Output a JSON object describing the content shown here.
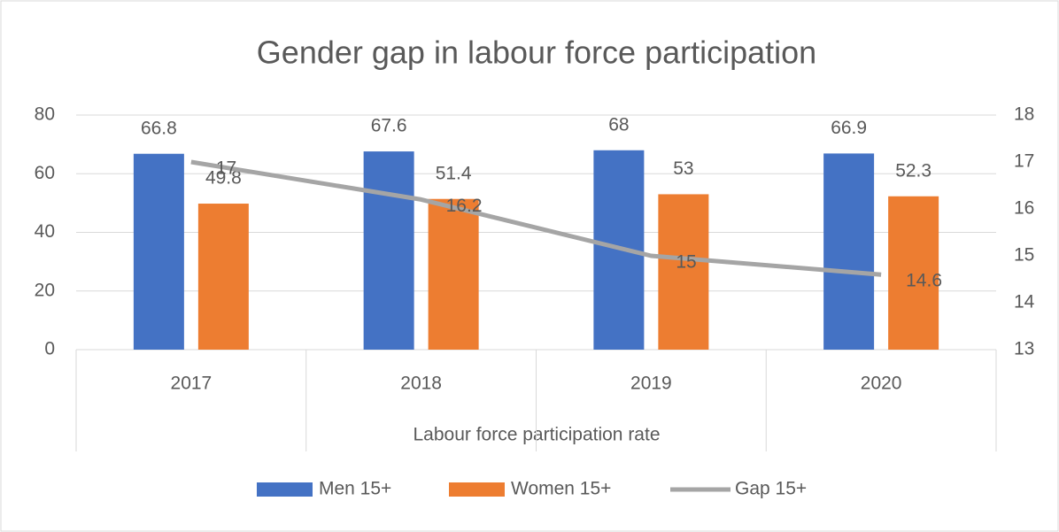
{
  "chart_data": {
    "type": "bar",
    "title": "Gender gap in labour force participation",
    "x_label": "Labour force participation rate",
    "categories": [
      "2017",
      "2018",
      "2019",
      "2020"
    ],
    "series": [
      {
        "name": "Men 15+",
        "type": "bar",
        "color": "#4472c4",
        "values": [
          66.8,
          67.6,
          68,
          66.9
        ]
      },
      {
        "name": "Women 15+",
        "type": "bar",
        "color": "#ed7d31",
        "values": [
          49.8,
          51.4,
          53,
          52.3
        ]
      },
      {
        "name": "Gap 15+",
        "type": "line",
        "axis": "y2",
        "color": "#a5a5a5",
        "values": [
          17,
          16.2,
          15,
          14.6
        ]
      }
    ],
    "ylim": [
      0,
      80
    ],
    "yticks": [
      0,
      20,
      40,
      60,
      80
    ],
    "y2lim": [
      13,
      18
    ],
    "y2ticks": [
      13,
      14,
      15,
      16,
      17,
      18
    ],
    "grid": true,
    "legend": "bottom"
  }
}
